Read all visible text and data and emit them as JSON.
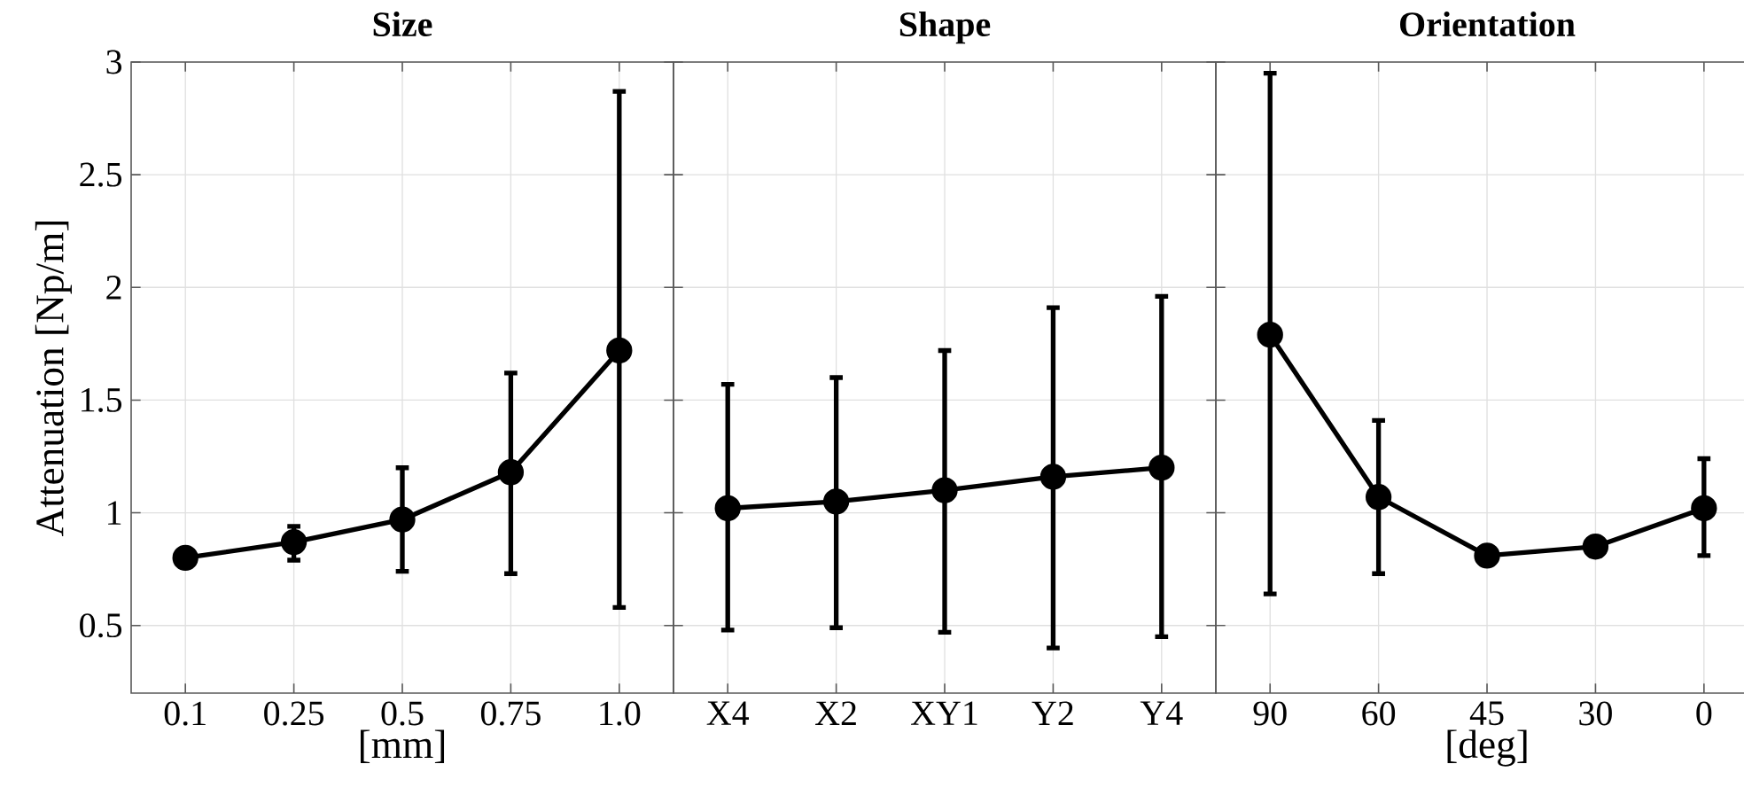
{
  "chart_data": [
    {
      "type": "line",
      "title": "Size",
      "xlabel": "[mm]",
      "ylabel": "Attenuation [Np/m]",
      "categories": [
        "0.1",
        "0.25",
        "0.5",
        "0.75",
        "1.0"
      ],
      "color": "#000000",
      "marker": "circle",
      "line_style": "solid",
      "grid": true,
      "values": [
        0.8,
        0.87,
        0.97,
        1.18,
        1.72
      ],
      "errors": [
        null,
        [
          0.79,
          0.94
        ],
        [
          0.74,
          1.2
        ],
        [
          0.73,
          1.62
        ],
        [
          0.58,
          2.87
        ]
      ],
      "ylim": [
        0.2,
        3
      ],
      "yticks": [
        0.5,
        1,
        1.5,
        2,
        2.5,
        3
      ]
    },
    {
      "type": "line",
      "title": "Shape",
      "categories": [
        "X4",
        "X2",
        "XY1",
        "Y2",
        "Y4"
      ],
      "color": "#000000",
      "marker": "circle",
      "line_style": "solid",
      "grid": true,
      "values": [
        1.02,
        1.05,
        1.1,
        1.16,
        1.2
      ],
      "errors": [
        [
          0.48,
          1.57
        ],
        [
          0.49,
          1.6
        ],
        [
          0.47,
          1.72
        ],
        [
          0.4,
          1.91
        ],
        [
          0.45,
          1.96
        ]
      ],
      "ylim": [
        0.2,
        3
      ],
      "yticks": [
        0.5,
        1,
        1.5,
        2,
        2.5,
        3
      ],
      "tick_labels": "x"
    },
    {
      "type": "line",
      "title": "Orientation",
      "xlabel": "[deg]",
      "categories": [
        "90",
        "60",
        "45",
        "30",
        "0"
      ],
      "color": "#000000",
      "marker": "circle",
      "line_style": "solid",
      "grid": true,
      "values": [
        1.79,
        1.07,
        0.81,
        0.85,
        1.02
      ],
      "errors": [
        [
          0.64,
          2.95
        ],
        [
          0.73,
          1.41
        ],
        null,
        [
          0.81,
          0.88
        ],
        [
          0.81,
          1.24
        ]
      ],
      "ylim": [
        0.2,
        3
      ],
      "yticks": [
        0.5,
        1,
        1.5,
        2,
        2.5,
        3
      ],
      "tick_labels": "x"
    }
  ]
}
